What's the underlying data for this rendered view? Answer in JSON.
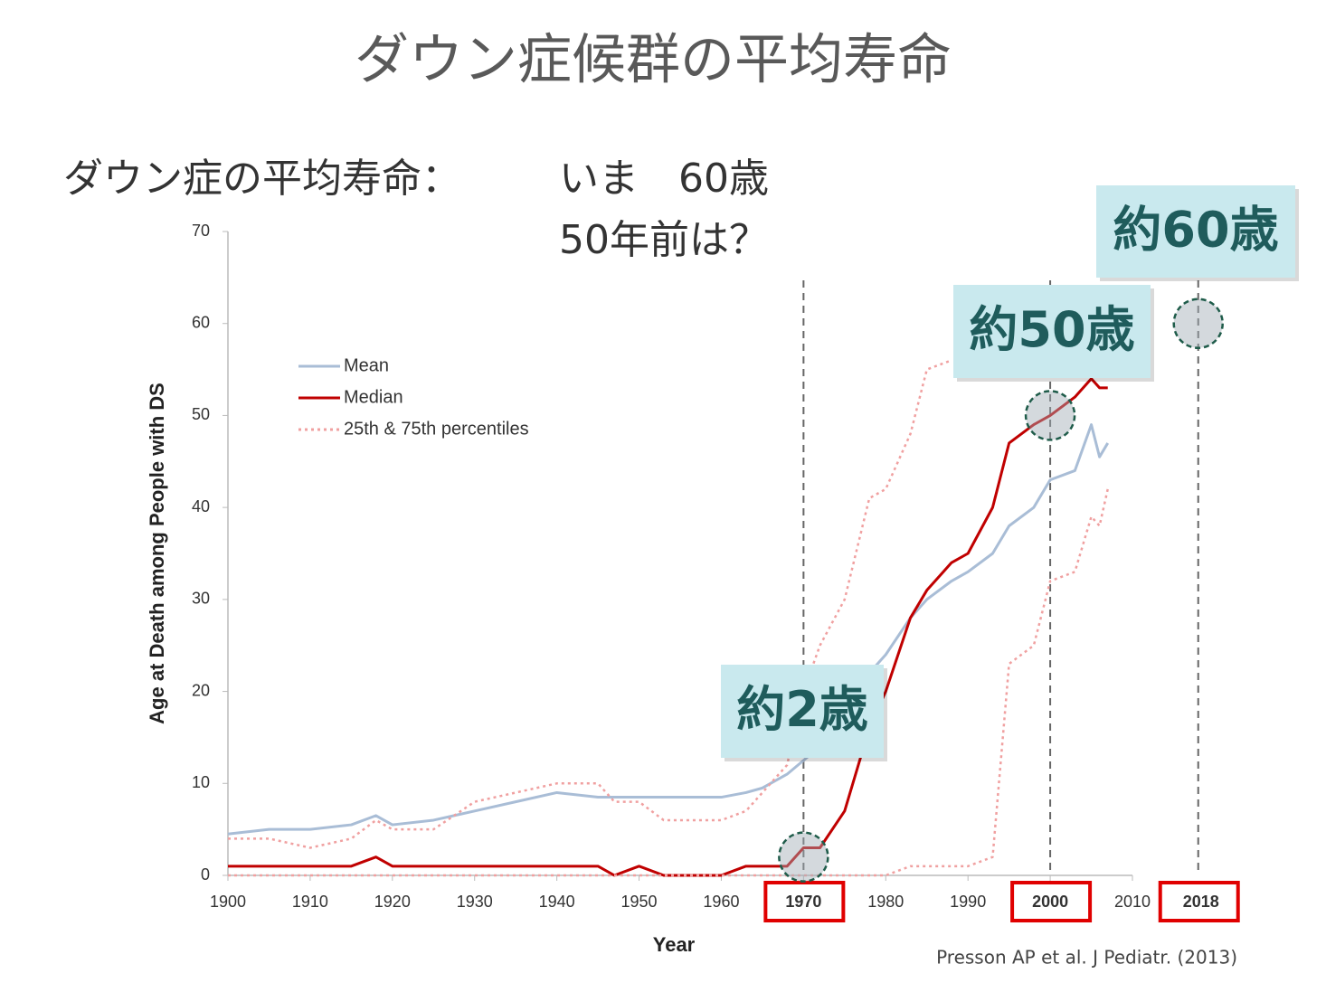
{
  "title": "ダウン症候群の平均寿命",
  "statement": {
    "label": "ダウン症の平均寿命：",
    "now": "いま　60歳",
    "past": "50年前は？"
  },
  "citation": "Presson AP et al.  J Pediatr. (2013)",
  "chart_data": {
    "type": "line",
    "xlabel": "Year",
    "ylabel": "Age at Death among People with DS",
    "x": [
      1900,
      1905,
      1910,
      1915,
      1918,
      1920,
      1925,
      1930,
      1935,
      1940,
      1945,
      1947,
      1950,
      1953,
      1955,
      1960,
      1963,
      1965,
      1968,
      1970,
      1972,
      1975,
      1978,
      1980,
      1983,
      1985,
      1988,
      1990,
      1993,
      1995,
      1998,
      2000,
      2003,
      2005,
      2006,
      2007
    ],
    "series": [
      {
        "name": "Mean",
        "color": "#a9bdd6",
        "values": [
          4.5,
          5,
          5,
          5.5,
          6.5,
          5.5,
          6,
          7,
          8,
          9,
          8.5,
          8.5,
          8.5,
          8.5,
          8.5,
          8.5,
          9,
          9.5,
          11,
          12.5,
          14,
          19,
          22,
          24,
          28,
          30,
          32,
          33,
          35,
          38,
          40,
          43,
          44,
          49,
          45.5,
          47
        ]
      },
      {
        "name": "Median",
        "color": "#c00000",
        "values": [
          1,
          1,
          1,
          1,
          2,
          1,
          1,
          1,
          1,
          1,
          1,
          0,
          1,
          0,
          0,
          0,
          1,
          1,
          1,
          3,
          3,
          7,
          16,
          20,
          28,
          31,
          34,
          35,
          40,
          47,
          49,
          50,
          52,
          54,
          53,
          53
        ]
      },
      {
        "name": "25th & 75th percentiles",
        "color": "#f0a0a0",
        "style": "dotted",
        "values": [
          4,
          4,
          3,
          4,
          6,
          5,
          5,
          8,
          9,
          10,
          10,
          8,
          8,
          6,
          6,
          6,
          7,
          9,
          12,
          20,
          25,
          30,
          41,
          42,
          48,
          55,
          56,
          null,
          null,
          null,
          null,
          null,
          null,
          null,
          null,
          null
        ]
      },
      {
        "color": "#f0a0a0",
        "style": "dotted",
        "values": [
          0,
          0,
          0,
          0,
          0,
          0,
          0,
          0,
          0,
          0,
          0,
          0,
          0,
          0,
          0,
          0,
          0,
          0,
          0,
          0,
          0,
          0,
          0,
          0,
          1,
          1,
          1,
          1,
          2,
          23,
          25,
          32,
          33,
          39,
          38,
          42
        ]
      }
    ],
    "xlim": [
      1900,
      2010
    ],
    "xticks": [
      1900,
      1910,
      1920,
      1930,
      1940,
      1950,
      1960,
      1970,
      1980,
      1990,
      2000,
      2010
    ],
    "ylim": [
      0,
      70
    ],
    "yticks": [
      0,
      10,
      20,
      30,
      40,
      50,
      60,
      70
    ],
    "highlight_years": [
      1970,
      2000,
      2018
    ],
    "annotations": [
      {
        "text": "約2歳",
        "x": 1970,
        "y": 2
      },
      {
        "text": "約50歳",
        "x": 2000,
        "y": 50
      },
      {
        "text": "約60歳",
        "x": 2018,
        "y": 60
      }
    ]
  }
}
